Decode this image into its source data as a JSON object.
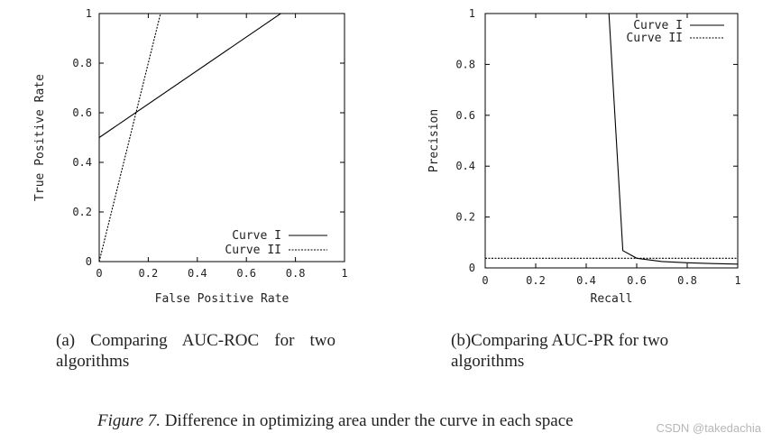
{
  "chart_data": [
    {
      "type": "line",
      "panel": "a",
      "xlabel": "False Positive Rate",
      "ylabel": "True Positive Rate",
      "xlim": [
        0,
        1
      ],
      "ylim": [
        0,
        1
      ],
      "xticks": [
        "0",
        "0.2",
        "0.4",
        "0.6",
        "0.8",
        "1"
      ],
      "yticks": [
        "0",
        "0.2",
        "0.4",
        "0.6",
        "0.8",
        "1"
      ],
      "legend_position": "bottom-right",
      "series": [
        {
          "name": "Curve I",
          "style": "solid",
          "x": [
            0,
            0.74,
            1
          ],
          "y": [
            0.5,
            1,
            1
          ]
        },
        {
          "name": "Curve II",
          "style": "dashed",
          "x": [
            0,
            0.25,
            1
          ],
          "y": [
            0,
            1,
            1
          ]
        }
      ]
    },
    {
      "type": "line",
      "panel": "b",
      "xlabel": "Recall",
      "ylabel": "Precision",
      "xlim": [
        0,
        1
      ],
      "ylim": [
        0,
        1
      ],
      "xticks": [
        "0",
        "0.2",
        "0.4",
        "0.6",
        "0.8",
        "1"
      ],
      "yticks": [
        "0",
        "0.2",
        "0.4",
        "0.6",
        "0.8",
        "1"
      ],
      "legend_position": "top-right",
      "series": [
        {
          "name": "Curve I",
          "style": "solid",
          "x": [
            0.49,
            0.545,
            0.6,
            0.7,
            0.8,
            0.9,
            1.0
          ],
          "y": [
            1.0,
            0.068,
            0.038,
            0.025,
            0.02,
            0.017,
            0.015
          ]
        },
        {
          "name": "Curve II",
          "style": "dashed",
          "x": [
            0,
            1
          ],
          "y": [
            0.038,
            0.038
          ]
        }
      ]
    }
  ],
  "captions": {
    "a_label": "(a)",
    "a_text": "Comparing AUC-ROC for two algorithms",
    "b_label": "(b)",
    "b_text": "Comparing AUC-PR for two algorithms",
    "figure_label": "Figure 7.",
    "figure_text": "Difference in optimizing area under the curve in each space"
  },
  "watermark": "CSDN @takedachia"
}
